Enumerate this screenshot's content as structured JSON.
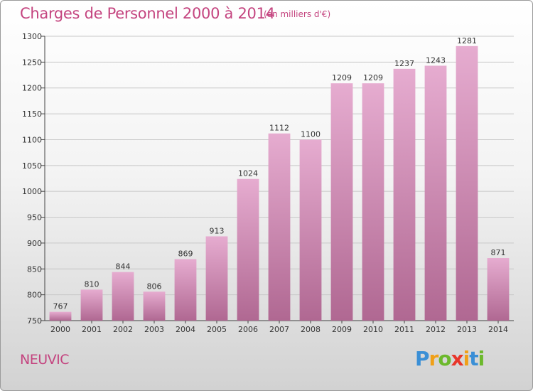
{
  "header": {
    "title": "Charges de Personnel 2000 à 2014",
    "subtitle": "(en milliers d'€)"
  },
  "footer": {
    "commune": "NEUVIC",
    "logo_letters": [
      {
        "ch": "P",
        "color": "#3a8fd6"
      },
      {
        "ch": "r",
        "color": "#f0a018"
      },
      {
        "ch": "o",
        "color": "#6cb92c"
      },
      {
        "ch": "x",
        "color": "#e8362a"
      },
      {
        "ch": "i",
        "color": "#f0a018"
      },
      {
        "ch": "t",
        "color": "#3a8fd6"
      },
      {
        "ch": "i",
        "color": "#6cb92c"
      }
    ]
  },
  "colors": {
    "bar_top": "#e6acd0",
    "bar_bottom": "#b06892",
    "title": "#c4447f",
    "grid": "#c8c8c8"
  },
  "chart_data": {
    "type": "bar",
    "title": "Charges de Personnel 2000 à 2014",
    "subtitle": "(en milliers d'€)",
    "categories": [
      "2000",
      "2001",
      "2002",
      "2003",
      "2004",
      "2005",
      "2006",
      "2007",
      "2008",
      "2009",
      "2010",
      "2011",
      "2012",
      "2013",
      "2014"
    ],
    "values": [
      767,
      810,
      844,
      806,
      869,
      913,
      1024,
      1112,
      1100,
      1209,
      1209,
      1237,
      1243,
      1281,
      871
    ],
    "ylim": [
      750,
      1300
    ],
    "yticks": [
      750,
      800,
      850,
      900,
      950,
      1000,
      1050,
      1100,
      1150,
      1200,
      1250,
      1300
    ],
    "grid": true,
    "xlabel": "",
    "ylabel": ""
  }
}
